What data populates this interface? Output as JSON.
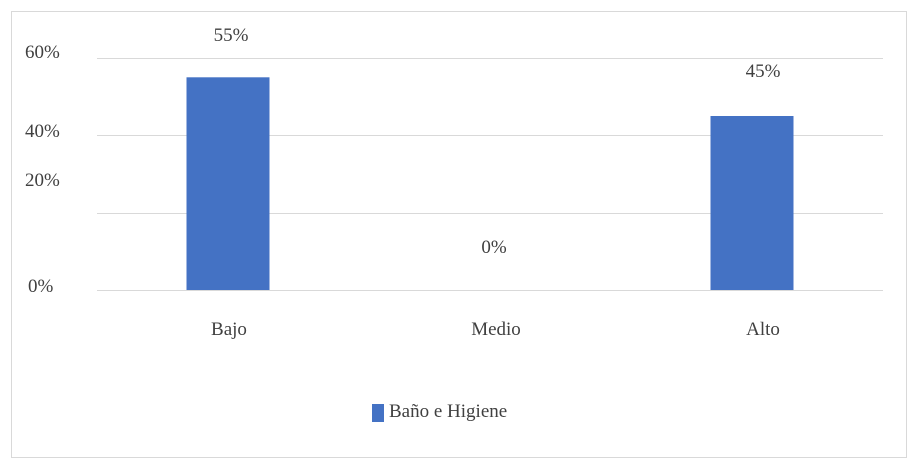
{
  "chart_data": {
    "type": "bar",
    "categories": [
      "Bajo",
      "Medio",
      "Alto"
    ],
    "series": [
      {
        "name": "Baño e Higiene",
        "values": [
          55,
          0,
          45
        ],
        "color": "#4472c4"
      }
    ],
    "data_labels": [
      "55%",
      "0%",
      "45%"
    ],
    "y_tick_labels": [
      "0%",
      "20%",
      "40%",
      "60%"
    ],
    "ylim": [
      0,
      60
    ],
    "grid": true,
    "grid_color": "#d9d9d9",
    "legend_position": "bottom",
    "title": "",
    "xlabel": "",
    "ylabel": ""
  }
}
